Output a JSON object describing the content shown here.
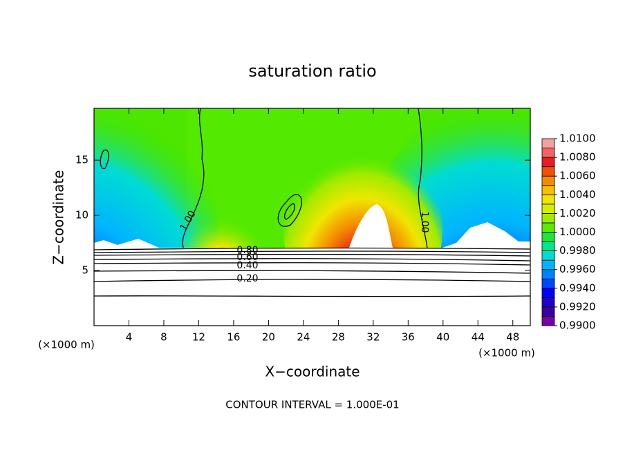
{
  "chart_data": {
    "type": "contour",
    "title": "saturation ratio",
    "xlabel": "X−coordinate",
    "ylabel": "Z−coordinate",
    "xunit_left": "(×1000 m)",
    "xunit_right": "(×1000 m)",
    "footnote": "CONTOUR INTERVAL = 1.000E-01",
    "xlim": [
      0,
      50
    ],
    "ylim": [
      0,
      19.7
    ],
    "xticks": [
      4,
      8,
      12,
      16,
      20,
      24,
      28,
      32,
      36,
      40,
      44,
      48
    ],
    "yticks": [
      5,
      10,
      15
    ],
    "contour_labels": [
      {
        "value": 1,
        "label": "1.00"
      },
      {
        "value": 1,
        "label": "1.00"
      },
      {
        "value": 0.8,
        "label": "0.80"
      },
      {
        "value": 0.6,
        "label": "0.60"
      },
      {
        "value": 0.4,
        "label": "0.40"
      },
      {
        "value": 0.2,
        "label": "0.20"
      }
    ],
    "colorbar": {
      "levels": [
        0.99,
        0.991,
        0.992,
        0.993,
        0.994,
        0.995,
        0.996,
        0.997,
        0.998,
        0.999,
        1.0,
        1.001,
        1.002,
        1.003,
        1.004,
        1.005,
        1.006,
        1.007,
        1.008,
        1.009,
        1.01
      ],
      "colors": [
        "#7800aa",
        "#3c00a0",
        "#1e00c8",
        "#0000ff",
        "#0046ff",
        "#0082ff",
        "#00b4ff",
        "#00dcd2",
        "#00e68c",
        "#1ee632",
        "#5aeb00",
        "#a0eb00",
        "#d2f000",
        "#f0e600",
        "#f5be00",
        "#f58c00",
        "#f05000",
        "#e61e1e",
        "#f06464",
        "#f5a0a0"
      ],
      "ticks": [
        {
          "value": 0.99,
          "label": "0.9900"
        },
        {
          "value": 0.992,
          "label": "0.9920"
        },
        {
          "value": 0.994,
          "label": "0.9940"
        },
        {
          "value": 0.996,
          "label": "0.9960"
        },
        {
          "value": 0.998,
          "label": "0.9980"
        },
        {
          "value": 1.0,
          "label": "1.0000"
        },
        {
          "value": 1.002,
          "label": "1.0020"
        },
        {
          "value": 1.004,
          "label": "1.0040"
        },
        {
          "value": 1.006,
          "label": "1.0060"
        },
        {
          "value": 1.008,
          "label": "1.0080"
        },
        {
          "value": 1.01,
          "label": "1.0100"
        }
      ]
    }
  }
}
